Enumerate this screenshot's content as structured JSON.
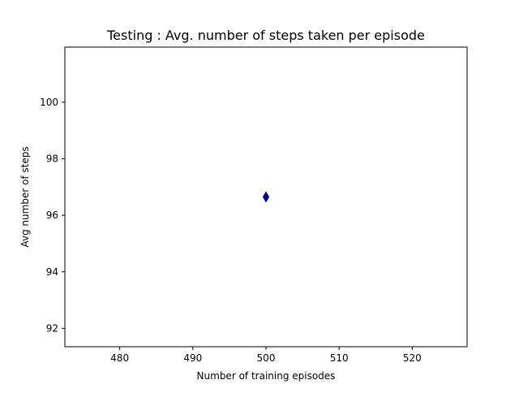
{
  "chart_data": {
    "type": "scatter",
    "title": "Testing : Avg. number of steps taken per episode",
    "xlabel": "Number of training episodes",
    "ylabel": "Avg number of steps",
    "xlim": [
      472.5,
      527.5
    ],
    "ylim": [
      91.35,
      101.95
    ],
    "xticks": [
      480,
      490,
      500,
      510,
      520
    ],
    "yticks": [
      92,
      94,
      96,
      98,
      100
    ],
    "grid": false,
    "marker": "thin-diamond",
    "series": [
      {
        "x": [
          500
        ],
        "y": [
          96.65
        ],
        "color": "#00008b"
      }
    ]
  }
}
